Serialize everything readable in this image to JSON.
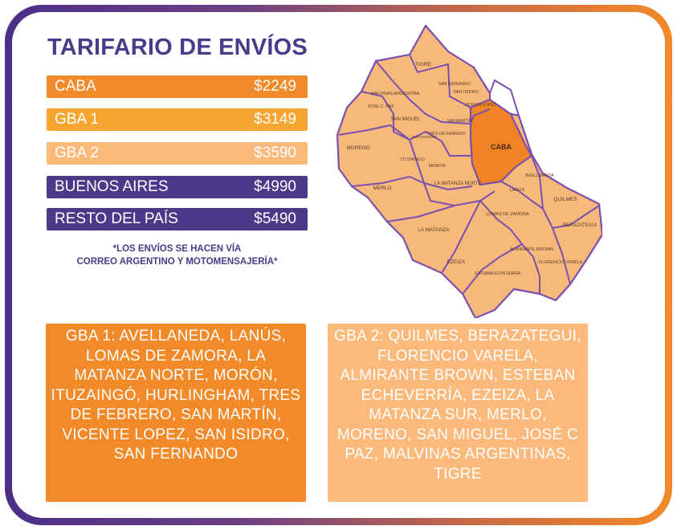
{
  "title": "TARIFARIO DE ENVÍOS",
  "rates": [
    {
      "zone": "CABA",
      "price": "$2249"
    },
    {
      "zone": "GBA 1",
      "price": "$3149"
    },
    {
      "zone": "GBA 2",
      "price": "$3590"
    },
    {
      "zone": "BUENOS AIRES",
      "price": "$4990"
    },
    {
      "zone": "RESTO DEL PAÍS",
      "price": "$5490"
    }
  ],
  "note": {
    "line1": "*LOS ENVÍOS SE HACEN VÍA",
    "line2": "CORREO ARGENTINO Y MOTOMENSAJERÍA*"
  },
  "map_labels": {
    "caba": "CABA",
    "tigre": "TIGRE",
    "malvinas": "MALVINAS ARGENTINA",
    "jose_c_paz": "JOSE C. PAZ",
    "san_miguel": "SAN MIGUEL",
    "san_fernando": "SAN FERNANDO",
    "san_isidro": "SAN ISIDRO",
    "vicente_lopez": "VICENTE LOPEZ",
    "san_martin": "SAN MARTIN",
    "hurlingham": "HURLINGHAM",
    "tres_de_febrero": "TRES DE FEBRERO",
    "ituzaingo": "ITUZAINGO",
    "moron": "MORON",
    "moreno": "MORENO",
    "merlo": "MERLO",
    "la_matanza_norte": "LA MATANZA NORTE",
    "la_matanza": "LA MATANZA",
    "lanus": "LANUS",
    "avellaneda": "AVELLANEDA",
    "quilmes": "QUILMES",
    "lomas_de_zamora": "LOMAS DE ZAMORA",
    "almirante_brown": "ALMIRANTE BROWN",
    "berazategui": "BERAZATEGUI",
    "florencio_varela": "FLORENCIO VARELA",
    "ezeiza": "EZEIZA",
    "esteban_echeverria": "ESTEBAN ECHEVERRIA"
  },
  "gba1_text": "GBA 1: AVELLANEDA, LANÚS, LOMAS DE ZAMORA, LA MATANZA NORTE, MORÓN, ITUZAINGÓ, HURLINGHAM, TRES DE FEBRERO, SAN MARTÍN, VICENTE LOPEZ, SAN ISIDRO, SAN FERNANDO",
  "gba2_text": "GBA 2: QUILMES, BERAZATEGUI, FLORENCIO VARELA, ALMIRANTE BROWN, ESTEBAN ECHEVERRÍA, EZEIZA, LA MATANZA SUR, MERLO, MORENO, SAN MIGUEL, JOSÉ C PAZ, MALVINAS ARGENTINAS, TIGRE",
  "colors": {
    "purple": "#4b3a8a",
    "orange": "#f28a2a",
    "amber": "#f6a530",
    "peach": "#fbb97c",
    "map_fill": "#f7b97a",
    "caba_fill": "#f08424"
  }
}
